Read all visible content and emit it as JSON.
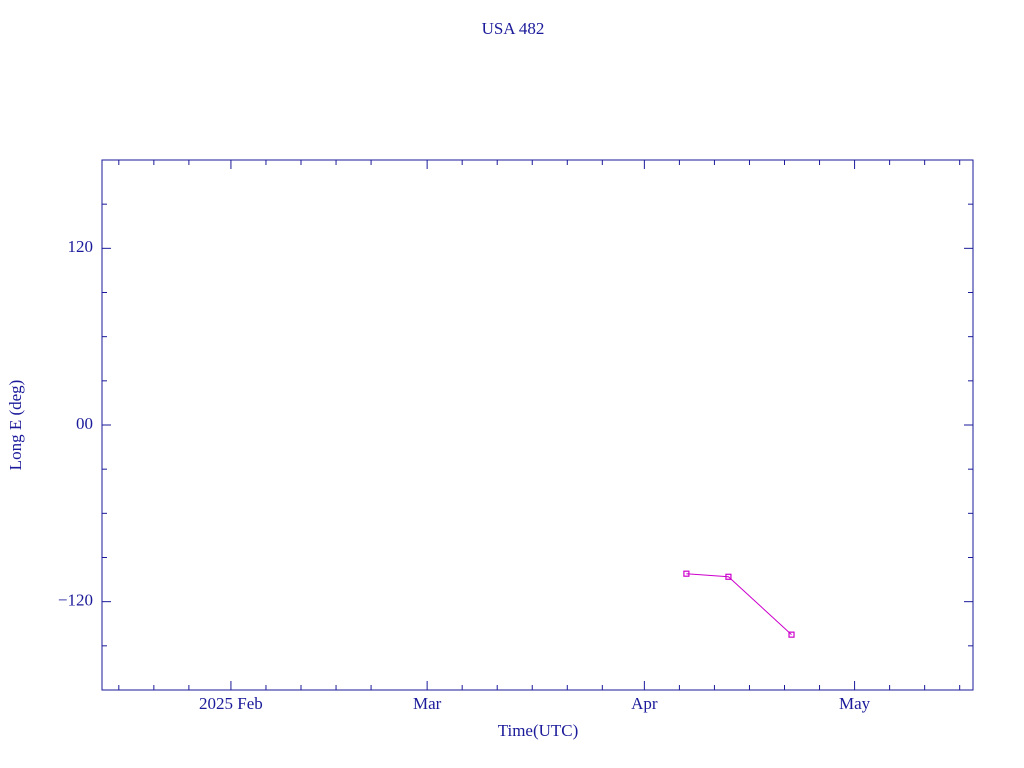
{
  "chart_data": {
    "type": "line",
    "title": "USA 482",
    "x_label": "Time(UTC)",
    "y_label": "Long E (deg)",
    "x": [
      97,
      103,
      112
    ],
    "series": [
      {
        "name": "USA 482",
        "color": "#cc00cc",
        "values": [
          -101.0,
          -103.1,
          -142.4
        ]
      }
    ],
    "xlim": [
      13.6,
      137.9
    ],
    "xticks": [
      {
        "value": 32,
        "label": "2025 Feb"
      },
      {
        "value": 60,
        "label": "Mar"
      },
      {
        "value": 91,
        "label": "Apr"
      },
      {
        "value": 121,
        "label": "May"
      }
    ],
    "xminorticks": [
      16,
      21,
      26,
      37,
      42,
      47,
      52,
      65,
      70,
      75,
      80,
      85,
      96,
      101,
      106,
      111,
      116,
      126,
      131,
      136
    ],
    "ylim": [
      -180,
      180
    ],
    "yticks": [
      {
        "value": 120,
        "label": "120"
      },
      {
        "value": 0,
        "label": "00"
      },
      {
        "value": -120,
        "label": "−120"
      }
    ],
    "yminorticks": [
      -150,
      -90,
      -60,
      -30,
      30,
      60,
      90,
      150
    ],
    "axis_color": "#1a1a9a"
  }
}
